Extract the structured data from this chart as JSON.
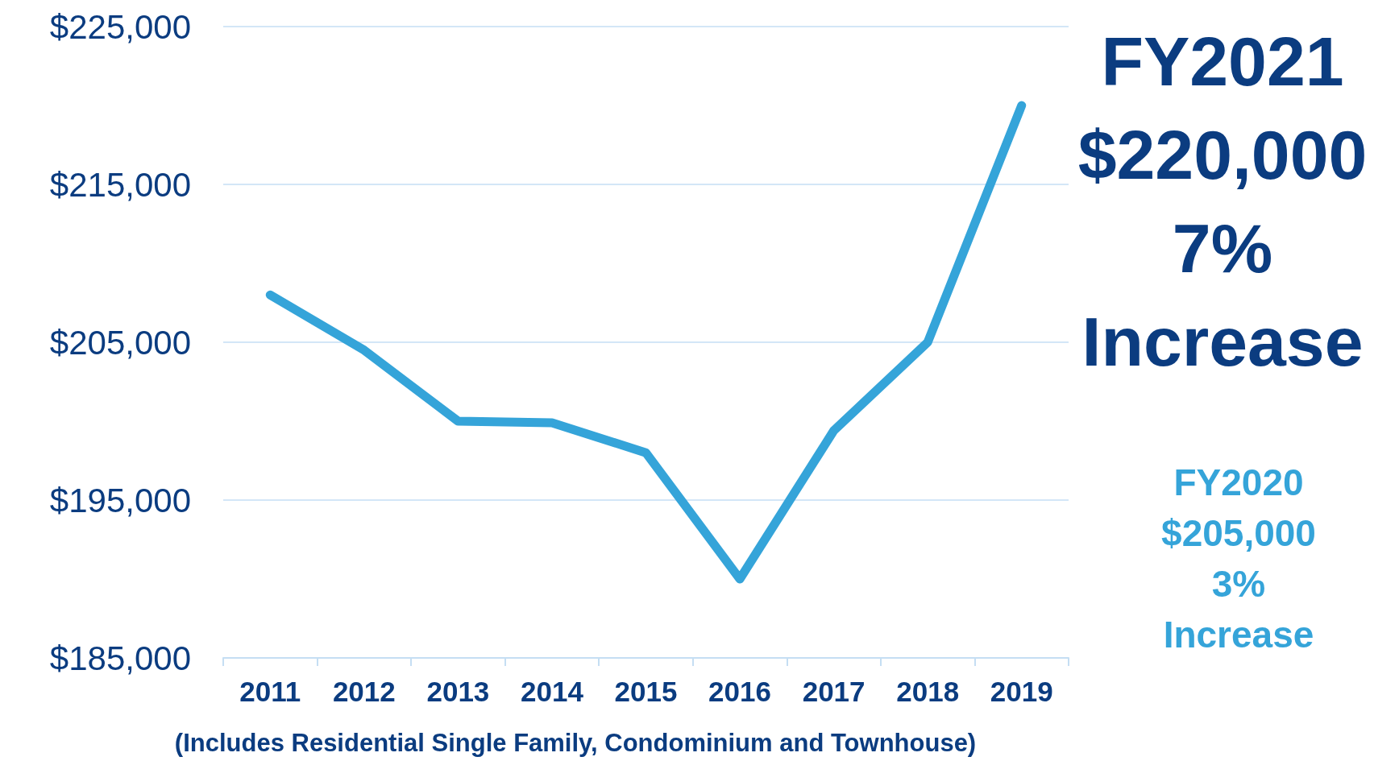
{
  "chart_data": {
    "type": "line",
    "categories": [
      "2011",
      "2012",
      "2013",
      "2014",
      "2015",
      "2016",
      "2017",
      "2018",
      "2019"
    ],
    "series": [
      {
        "color": "#35a4d9",
        "values": [
          208000,
          204500,
          200000,
          199900,
          198000,
          190000,
          199400,
          205000,
          220000
        ]
      }
    ],
    "ylim": [
      185000,
      225000
    ],
    "yticks": [
      {
        "value": 185000,
        "label": "$185,000"
      },
      {
        "value": 195000,
        "label": "$195,000"
      },
      {
        "value": 205000,
        "label": "$205,000"
      },
      {
        "value": 215000,
        "label": "$215,000"
      },
      {
        "value": 225000,
        "label": "$225,000"
      }
    ],
    "grid": "y",
    "marker": "none",
    "line_style": "solid",
    "annotations": [
      "FY2021\n$220,000\n7%\nIncrease",
      "FY2020\n$205,000\n3%\nIncrease",
      "(Includes Residential Single Family, Condominium and Townhouse)"
    ]
  }
}
